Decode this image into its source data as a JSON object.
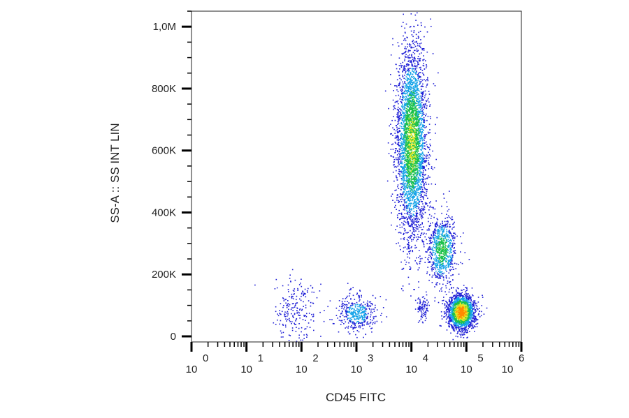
{
  "chart_data": {
    "type": "scatter",
    "subtype": "flow-cytometry-density-dot-plot",
    "xlabel": "CD45 FITC",
    "ylabel": "SS-A :: SS INT LIN",
    "x_scale": "log",
    "xlim_log10": [
      0,
      6
    ],
    "x_tick_labels": [
      {
        "base": "10",
        "exp": "0",
        "log10": 0
      },
      {
        "base": "10",
        "exp": "1",
        "log10": 1
      },
      {
        "base": "10",
        "exp": "2",
        "log10": 2
      },
      {
        "base": "10",
        "exp": "3",
        "log10": 3
      },
      {
        "base": "10",
        "exp": "4",
        "log10": 4
      },
      {
        "base": "10",
        "exp": "5",
        "log10": 5
      },
      {
        "base": "10",
        "exp": "6",
        "log10": 6
      }
    ],
    "y_scale": "linear",
    "ylim": [
      0,
      1050000
    ],
    "y_ticks": [
      {
        "label": "0",
        "value": 0
      },
      {
        "label": "200K",
        "value": 200000
      },
      {
        "label": "400K",
        "value": 400000
      },
      {
        "label": "600K",
        "value": 600000
      },
      {
        "label": "800K",
        "value": 800000
      },
      {
        "label": "1,0M",
        "value": 1000000
      }
    ],
    "color_scale": [
      "#1f1fd6",
      "#14a3e8",
      "#1bc14a",
      "#e9e924",
      "#ff8a00",
      "#ff1a00"
    ],
    "populations": [
      {
        "log10_x": 1.9,
        "y": 90000,
        "sd_log10_x": 0.18,
        "sd_y": 55000,
        "count": 220,
        "peak_density": 0.12
      },
      {
        "log10_x": 3.0,
        "y": 75000,
        "sd_log10_x": 0.17,
        "sd_y": 28000,
        "count": 420,
        "peak_density": 0.35
      },
      {
        "log10_x": 4.0,
        "y": 630000,
        "sd_log10_x": 0.14,
        "sd_y": 155000,
        "count": 3600,
        "peak_density": 0.65
      },
      {
        "log10_x": 4.55,
        "y": 280000,
        "sd_log10_x": 0.13,
        "sd_y": 55000,
        "count": 850,
        "peak_density": 0.55
      },
      {
        "log10_x": 4.9,
        "y": 80000,
        "sd_log10_x": 0.12,
        "sd_y": 28000,
        "count": 1900,
        "peak_density": 1.0
      },
      {
        "log10_x": 4.2,
        "y": 95000,
        "sd_log10_x": 0.05,
        "sd_y": 22000,
        "count": 90,
        "peak_density": 0.15
      }
    ]
  }
}
